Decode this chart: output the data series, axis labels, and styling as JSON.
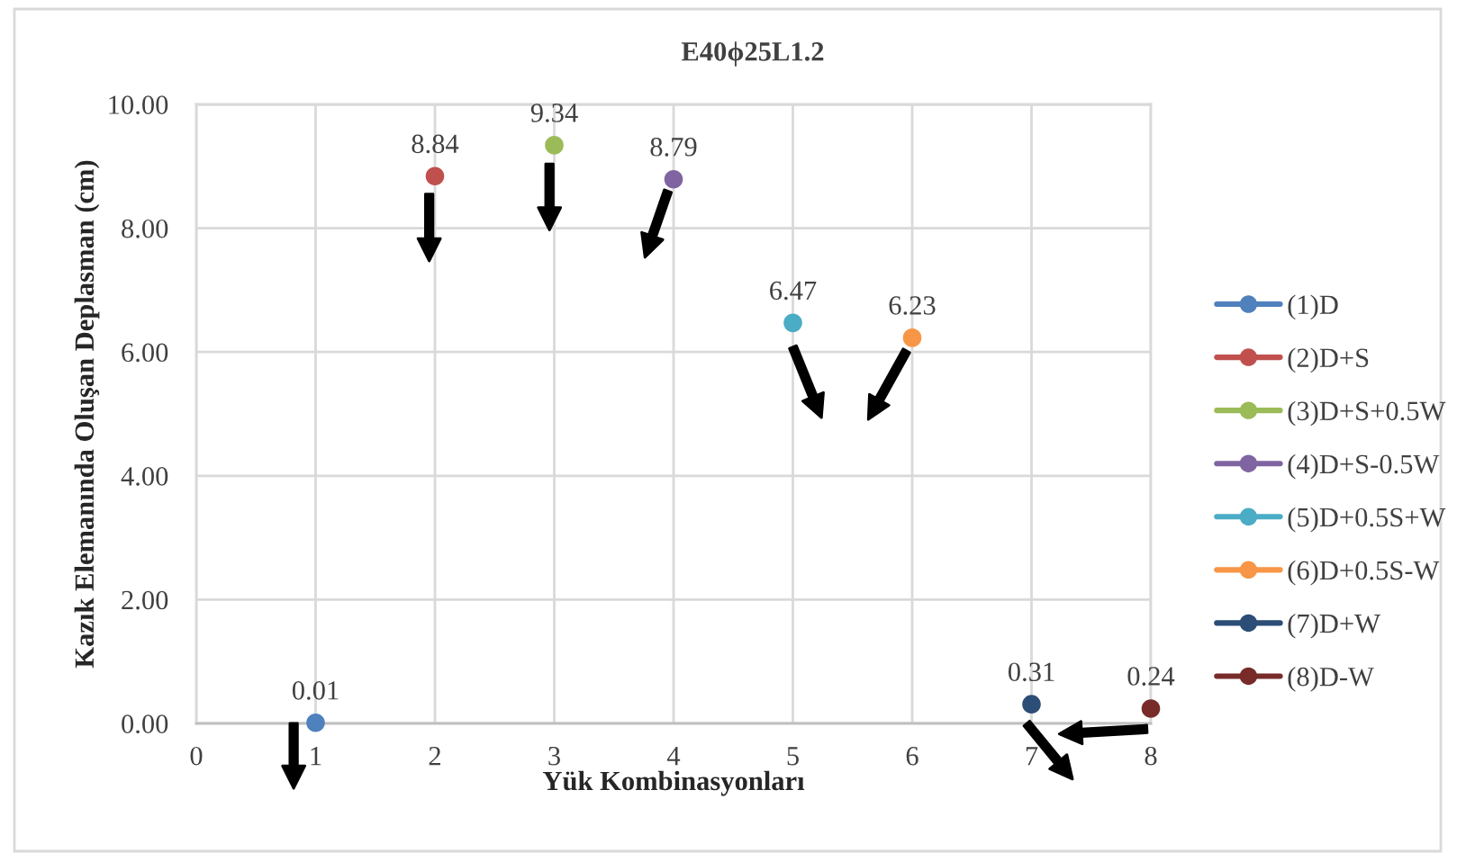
{
  "chart_data": {
    "type": "scatter",
    "title": "E40ϕ25L1.2",
    "xlabel": "Yük Kombinasyonları",
    "ylabel": "Kazık Elemanında Oluşan Deplasman (cm)",
    "series": [
      {
        "name": "(1)D",
        "color": "#4f81bd",
        "x": [
          1
        ],
        "values": [
          0.01
        ]
      },
      {
        "name": "(2)D+S",
        "color": "#c0504d",
        "x": [
          2
        ],
        "values": [
          8.84
        ]
      },
      {
        "name": "(3)D+S+0.5W",
        "color": "#9bbb59",
        "x": [
          3
        ],
        "values": [
          9.34
        ]
      },
      {
        "name": "(4)D+S-0.5W",
        "color": "#8064a2",
        "x": [
          4
        ],
        "values": [
          8.79
        ]
      },
      {
        "name": "(5)D+0.5S+W",
        "color": "#4bacc6",
        "x": [
          5
        ],
        "values": [
          6.47
        ]
      },
      {
        "name": "(6)D+0.5S-W",
        "color": "#f79646",
        "x": [
          6
        ],
        "values": [
          6.23
        ]
      },
      {
        "name": "(7)D+W",
        "color": "#2c4d75",
        "x": [
          7
        ],
        "values": [
          0.31
        ]
      },
      {
        "name": "(8)D-W",
        "color": "#772c2a",
        "x": [
          8
        ],
        "values": [
          0.24
        ]
      }
    ],
    "xlim": [
      0,
      8
    ],
    "xticks": [
      0,
      1,
      2,
      3,
      4,
      5,
      6,
      7,
      8
    ],
    "ylim": [
      0,
      10
    ],
    "yticks": [
      {
        "value": 0,
        "label": "0.00"
      },
      {
        "value": 2,
        "label": "2.00"
      },
      {
        "value": 4,
        "label": "4.00"
      },
      {
        "value": 6,
        "label": "6.00"
      },
      {
        "value": 8,
        "label": "8.00"
      },
      {
        "value": 10,
        "label": "10.00"
      }
    ],
    "grid": true,
    "legend": "right",
    "marker": "circle",
    "data_labels": true
  }
}
